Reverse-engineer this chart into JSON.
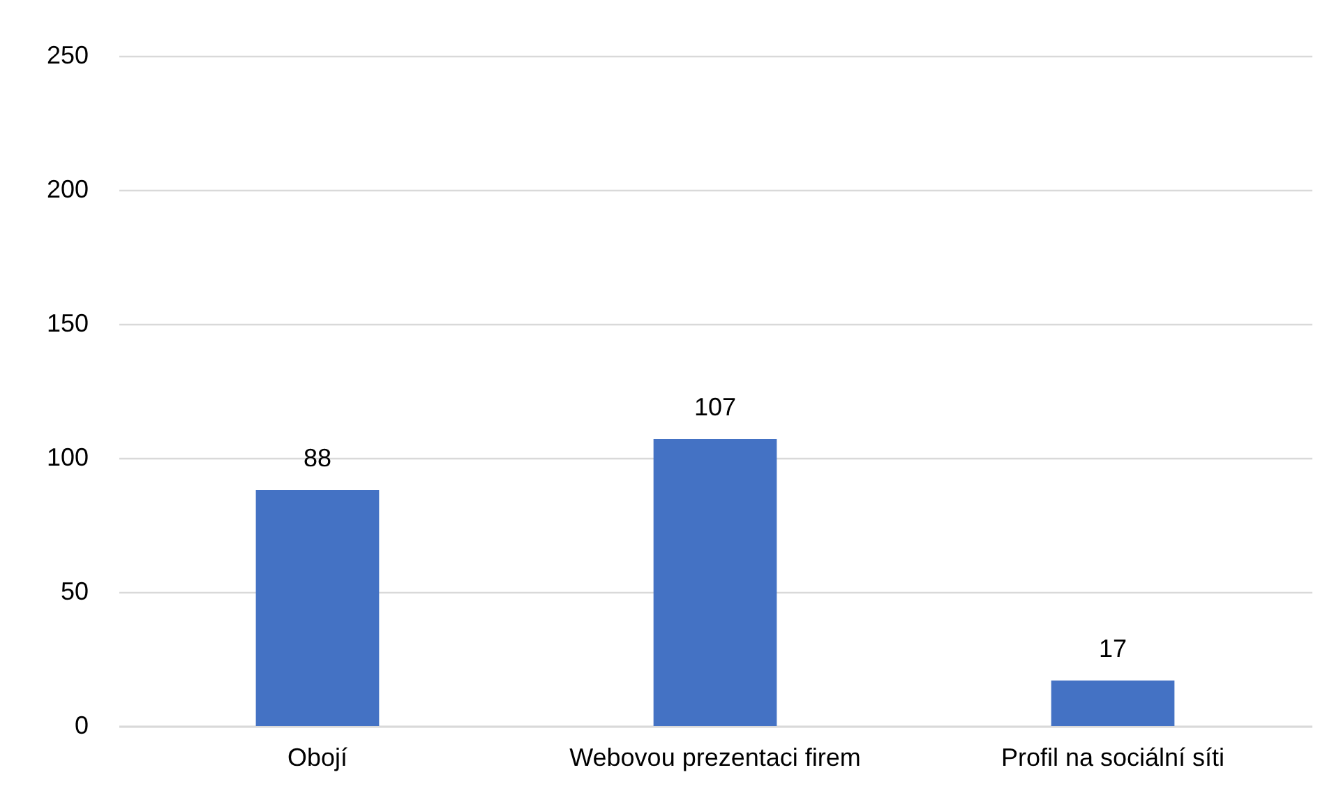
{
  "chart_data": {
    "type": "bar",
    "categories": [
      "Obojí",
      "Webovou prezentaci firem",
      "Profil na sociální síti"
    ],
    "values": [
      88,
      107,
      17
    ],
    "color": "#4472c4",
    "ylim": [
      0,
      250
    ],
    "yticks": [
      0,
      50,
      100,
      150,
      200,
      250
    ],
    "grid": "y",
    "data_labels": true
  }
}
